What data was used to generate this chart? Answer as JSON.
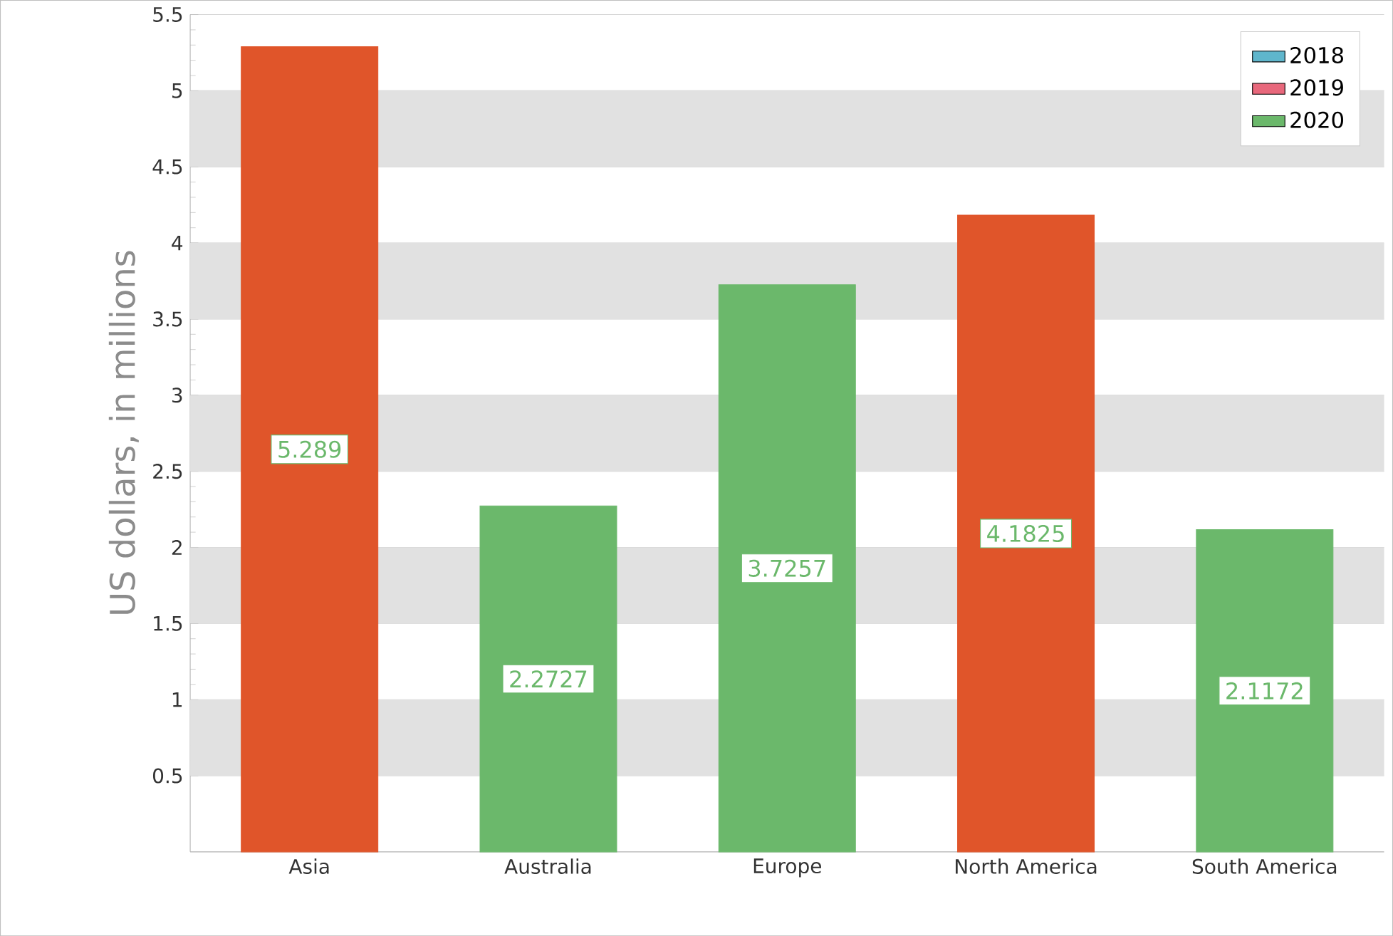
{
  "chart_data": {
    "type": "bar",
    "ylabel": "US dollars, in millions",
    "categories": [
      "Asia",
      "Australia",
      "Europe",
      "North America",
      "South America"
    ],
    "series": [
      {
        "name": "2018",
        "color": "#5fb6cc",
        "values": [
          null,
          null,
          null,
          null,
          null
        ]
      },
      {
        "name": "2019",
        "color": "#e8687c",
        "values": [
          null,
          null,
          null,
          null,
          null
        ]
      },
      {
        "name": "2020",
        "color": "#6bb86b",
        "values": [
          5.289,
          2.2727,
          3.7257,
          4.1825,
          2.1172
        ],
        "colors": [
          "#e0552a",
          "#6bb86b",
          "#6bb86b",
          "#e0552a",
          "#6bb86b"
        ]
      }
    ],
    "ylim": [
      0,
      5.5
    ],
    "yticks": [
      0.5,
      1,
      1.5,
      2,
      2.5,
      3,
      3.5,
      4,
      4.5,
      5,
      5.5
    ],
    "grid": "y",
    "bands": [
      {
        "axis": "y",
        "from": 0.5,
        "to": 1,
        "color": "#e1e1e1"
      },
      {
        "axis": "y",
        "from": 1.5,
        "to": 2,
        "color": "#e1e1e1"
      },
      {
        "axis": "y",
        "from": 2.5,
        "to": 3,
        "color": "#e1e1e1"
      },
      {
        "axis": "y",
        "from": 3.5,
        "to": 4,
        "color": "#e1e1e1"
      },
      {
        "axis": "y",
        "from": 4.5,
        "to": 5,
        "color": "#e1e1e1"
      }
    ],
    "legend": "top right",
    "data_labels": true
  }
}
